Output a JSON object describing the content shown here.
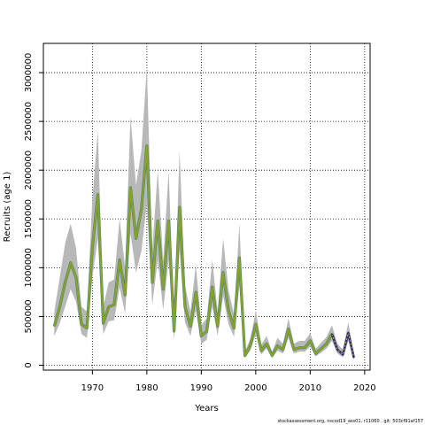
{
  "chart_data": {
    "type": "line",
    "xlabel": "Years",
    "ylabel": "Recruits (age 1)",
    "xlim": [
      1961,
      2021
    ],
    "ylim": [
      -50000,
      3300000
    ],
    "xticks": [
      1970,
      1980,
      1990,
      2000,
      2010,
      2020
    ],
    "yticks": [
      0,
      500000,
      1000000,
      1500000,
      2000000,
      2500000,
      3000000
    ],
    "grid": true,
    "colors": {
      "band": "#b8b8b8",
      "underlay": "#2f7f86",
      "main": "#8aa02a",
      "recent": "#2a2a6a",
      "recent_dash": "#c8b060"
    },
    "x": [
      1963,
      1964,
      1965,
      1966,
      1967,
      1968,
      1969,
      1970,
      1971,
      1972,
      1973,
      1974,
      1975,
      1976,
      1977,
      1978,
      1979,
      1980,
      1981,
      1982,
      1983,
      1984,
      1985,
      1986,
      1987,
      1988,
      1989,
      1990,
      1991,
      1992,
      1993,
      1994,
      1995,
      1996,
      1997,
      1998,
      1999,
      2000,
      2001,
      2002,
      2003,
      2004,
      2005,
      2006,
      2007,
      2008,
      2009,
      2010,
      2011,
      2012,
      2013,
      2014,
      2015,
      2016,
      2017,
      2018
    ],
    "series": [
      {
        "values": [
          400000,
          600000,
          850000,
          1050000,
          900000,
          420000,
          380000,
          1200000,
          1750000,
          430000,
          600000,
          620000,
          1080000,
          720000,
          1820000,
          1300000,
          1600000,
          2250000,
          850000,
          1480000,
          780000,
          1480000,
          350000,
          1620000,
          600000,
          400000,
          750000,
          300000,
          350000,
          800000,
          400000,
          950000,
          560000,
          380000,
          1100000,
          100000,
          200000,
          420000,
          150000,
          220000,
          100000,
          200000,
          160000,
          370000,
          160000,
          180000,
          180000,
          250000,
          120000,
          170000,
          220000,
          320000,
          160000,
          110000,
          330000,
          80000
        ],
        "lower": [
          300000,
          430000,
          600000,
          780000,
          650000,
          320000,
          280000,
          900000,
          1300000,
          320000,
          450000,
          460000,
          800000,
          530000,
          1350000,
          950000,
          1170000,
          1650000,
          620000,
          1080000,
          570000,
          1080000,
          260000,
          1180000,
          440000,
          300000,
          560000,
          220000,
          260000,
          600000,
          300000,
          710000,
          420000,
          290000,
          820000,
          75000,
          150000,
          320000,
          110000,
          170000,
          75000,
          150000,
          120000,
          280000,
          120000,
          140000,
          140000,
          190000,
          90000,
          130000,
          170000,
          250000,
          120000,
          80000,
          250000,
          60000
        ],
        "upper": [
          550000,
          900000,
          1250000,
          1450000,
          1200000,
          600000,
          550000,
          1700000,
          2400000,
          600000,
          850000,
          880000,
          1500000,
          1000000,
          2550000,
          1850000,
          2200000,
          3050000,
          1180000,
          2000000,
          1070000,
          2000000,
          480000,
          2200000,
          820000,
          550000,
          1030000,
          410000,
          480000,
          1080000,
          550000,
          1300000,
          770000,
          520000,
          1450000,
          140000,
          270000,
          560000,
          210000,
          300000,
          140000,
          280000,
          220000,
          480000,
          220000,
          250000,
          250000,
          330000,
          170000,
          230000,
          290000,
          410000,
          220000,
          160000,
          440000,
          110000
        ]
      }
    ]
  },
  "footer": "stockassessment.org, nscod19_ass01, r11060 , git: 503cf91af157"
}
